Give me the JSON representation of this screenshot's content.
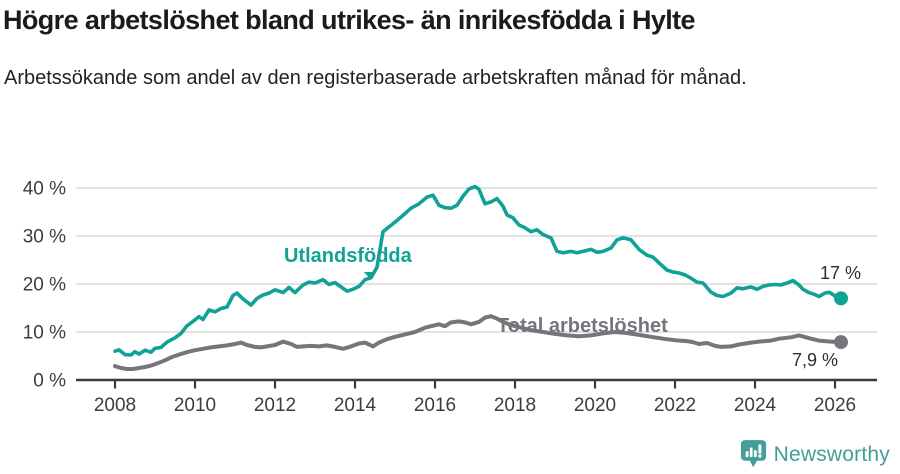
{
  "header": {
    "title": "Högre arbetslöshet bland utrikes- än inrikesfödda i Hylte",
    "subtitle": "Arbetssökande som andel av den registerbaserade arbetskraften månad för månad."
  },
  "chart_data": {
    "type": "line",
    "title": "Högre arbetslöshet bland utrikes- än inrikesfödda i Hylte",
    "subtitle": "Arbetssökande som andel av den registerbaserade arbetskraften månad för månad.",
    "xlabel": "",
    "ylabel": "",
    "x_axis": {
      "ticks": [
        2008,
        2010,
        2012,
        2014,
        2016,
        2018,
        2020,
        2022,
        2024,
        2026
      ],
      "range": [
        2007.3,
        2027.1
      ]
    },
    "y_axis": {
      "tick_values": [
        0,
        10,
        20,
        30,
        40
      ],
      "tick_labels": [
        "0 %",
        "10 %",
        "20 %",
        "30 %",
        "40 %"
      ],
      "range": [
        0,
        42
      ],
      "grid": true
    },
    "legend_position": "inline-labels",
    "series": [
      {
        "name": "Utlandsfödda",
        "color": "#10a294",
        "end_label": "17 %",
        "end_value": 17.0,
        "points": [
          [
            2008.0,
            6.0
          ],
          [
            2008.1,
            6.3
          ],
          [
            2008.25,
            5.3
          ],
          [
            2008.4,
            5.2
          ],
          [
            2008.5,
            5.9
          ],
          [
            2008.6,
            5.4
          ],
          [
            2008.75,
            6.2
          ],
          [
            2008.9,
            5.8
          ],
          [
            2009.0,
            6.6
          ],
          [
            2009.15,
            6.8
          ],
          [
            2009.3,
            7.9
          ],
          [
            2009.5,
            8.8
          ],
          [
            2009.65,
            9.7
          ],
          [
            2009.8,
            11.3
          ],
          [
            2009.95,
            12.2
          ],
          [
            2010.1,
            13.2
          ],
          [
            2010.2,
            12.6
          ],
          [
            2010.35,
            14.6
          ],
          [
            2010.5,
            14.2
          ],
          [
            2010.65,
            14.9
          ],
          [
            2010.8,
            15.2
          ],
          [
            2010.95,
            17.6
          ],
          [
            2011.05,
            18.1
          ],
          [
            2011.2,
            16.9
          ],
          [
            2011.4,
            15.6
          ],
          [
            2011.55,
            17.0
          ],
          [
            2011.7,
            17.7
          ],
          [
            2011.85,
            18.1
          ],
          [
            2012.0,
            18.8
          ],
          [
            2012.2,
            18.2
          ],
          [
            2012.35,
            19.3
          ],
          [
            2012.5,
            18.2
          ],
          [
            2012.7,
            19.8
          ],
          [
            2012.85,
            20.4
          ],
          [
            2013.0,
            20.2
          ],
          [
            2013.2,
            20.9
          ],
          [
            2013.35,
            19.9
          ],
          [
            2013.5,
            20.3
          ],
          [
            2013.65,
            19.4
          ],
          [
            2013.8,
            18.5
          ],
          [
            2013.95,
            18.9
          ],
          [
            2014.1,
            19.5
          ],
          [
            2014.25,
            20.9
          ],
          [
            2014.4,
            21.3
          ],
          [
            2014.55,
            23.5
          ],
          [
            2014.7,
            30.9
          ],
          [
            2014.85,
            31.9
          ],
          [
            2015.0,
            32.9
          ],
          [
            2015.2,
            34.3
          ],
          [
            2015.4,
            35.8
          ],
          [
            2015.6,
            36.7
          ],
          [
            2015.8,
            38.1
          ],
          [
            2015.95,
            38.5
          ],
          [
            2016.1,
            36.4
          ],
          [
            2016.25,
            35.9
          ],
          [
            2016.4,
            35.8
          ],
          [
            2016.55,
            36.4
          ],
          [
            2016.7,
            38.3
          ],
          [
            2016.85,
            39.8
          ],
          [
            2017.0,
            40.3
          ],
          [
            2017.1,
            39.7
          ],
          [
            2017.25,
            36.7
          ],
          [
            2017.4,
            37.1
          ],
          [
            2017.55,
            37.8
          ],
          [
            2017.7,
            36.2
          ],
          [
            2017.8,
            34.4
          ],
          [
            2017.95,
            33.8
          ],
          [
            2018.1,
            32.3
          ],
          [
            2018.25,
            31.7
          ],
          [
            2018.4,
            30.9
          ],
          [
            2018.55,
            31.3
          ],
          [
            2018.7,
            30.3
          ],
          [
            2018.9,
            29.6
          ],
          [
            2019.05,
            26.8
          ],
          [
            2019.2,
            26.5
          ],
          [
            2019.4,
            26.8
          ],
          [
            2019.55,
            26.5
          ],
          [
            2019.7,
            26.8
          ],
          [
            2019.9,
            27.2
          ],
          [
            2020.05,
            26.6
          ],
          [
            2020.2,
            26.8
          ],
          [
            2020.4,
            27.5
          ],
          [
            2020.55,
            29.2
          ],
          [
            2020.7,
            29.6
          ],
          [
            2020.9,
            29.2
          ],
          [
            2021.1,
            27.2
          ],
          [
            2021.3,
            26.0
          ],
          [
            2021.45,
            25.6
          ],
          [
            2021.6,
            24.4
          ],
          [
            2021.8,
            22.9
          ],
          [
            2021.95,
            22.5
          ],
          [
            2022.1,
            22.3
          ],
          [
            2022.25,
            21.9
          ],
          [
            2022.4,
            21.2
          ],
          [
            2022.55,
            20.4
          ],
          [
            2022.7,
            20.2
          ],
          [
            2022.9,
            18.3
          ],
          [
            2023.05,
            17.6
          ],
          [
            2023.2,
            17.4
          ],
          [
            2023.4,
            18.1
          ],
          [
            2023.55,
            19.2
          ],
          [
            2023.7,
            19.0
          ],
          [
            2023.9,
            19.4
          ],
          [
            2024.05,
            18.9
          ],
          [
            2024.2,
            19.5
          ],
          [
            2024.35,
            19.8
          ],
          [
            2024.5,
            19.9
          ],
          [
            2024.65,
            19.8
          ],
          [
            2024.8,
            20.2
          ],
          [
            2024.95,
            20.7
          ],
          [
            2025.1,
            19.8
          ],
          [
            2025.2,
            18.9
          ],
          [
            2025.35,
            18.2
          ],
          [
            2025.5,
            17.8
          ],
          [
            2025.6,
            17.4
          ],
          [
            2025.75,
            18.1
          ],
          [
            2025.85,
            18.3
          ],
          [
            2025.95,
            17.8
          ],
          [
            2026.05,
            17.2
          ],
          [
            2026.15,
            17.0
          ]
        ]
      },
      {
        "name": "Total arbetslöshet",
        "color": "#76757b",
        "end_label": "7,9 %",
        "end_value": 7.9,
        "points": [
          [
            2008.0,
            2.9
          ],
          [
            2008.15,
            2.5
          ],
          [
            2008.3,
            2.3
          ],
          [
            2008.45,
            2.3
          ],
          [
            2008.6,
            2.5
          ],
          [
            2008.75,
            2.7
          ],
          [
            2008.9,
            3.0
          ],
          [
            2009.1,
            3.6
          ],
          [
            2009.25,
            4.1
          ],
          [
            2009.4,
            4.7
          ],
          [
            2009.6,
            5.3
          ],
          [
            2009.8,
            5.8
          ],
          [
            2010.0,
            6.2
          ],
          [
            2010.2,
            6.5
          ],
          [
            2010.4,
            6.8
          ],
          [
            2010.6,
            7.0
          ],
          [
            2010.8,
            7.2
          ],
          [
            2011.0,
            7.5
          ],
          [
            2011.15,
            7.8
          ],
          [
            2011.3,
            7.3
          ],
          [
            2011.5,
            6.9
          ],
          [
            2011.65,
            6.8
          ],
          [
            2011.8,
            7.0
          ],
          [
            2012.0,
            7.3
          ],
          [
            2012.2,
            8.0
          ],
          [
            2012.4,
            7.5
          ],
          [
            2012.55,
            6.9
          ],
          [
            2012.7,
            7.0
          ],
          [
            2012.9,
            7.1
          ],
          [
            2013.1,
            7.0
          ],
          [
            2013.3,
            7.2
          ],
          [
            2013.5,
            6.9
          ],
          [
            2013.7,
            6.5
          ],
          [
            2013.9,
            7.0
          ],
          [
            2014.1,
            7.6
          ],
          [
            2014.25,
            7.8
          ],
          [
            2014.45,
            7.0
          ],
          [
            2014.6,
            7.8
          ],
          [
            2014.8,
            8.5
          ],
          [
            2015.0,
            9.0
          ],
          [
            2015.25,
            9.5
          ],
          [
            2015.5,
            10.0
          ],
          [
            2015.75,
            10.9
          ],
          [
            2015.9,
            11.2
          ],
          [
            2016.1,
            11.6
          ],
          [
            2016.25,
            11.2
          ],
          [
            2016.4,
            12.0
          ],
          [
            2016.6,
            12.2
          ],
          [
            2016.75,
            12.0
          ],
          [
            2016.9,
            11.6
          ],
          [
            2017.1,
            12.1
          ],
          [
            2017.25,
            13.0
          ],
          [
            2017.4,
            13.3
          ],
          [
            2017.55,
            12.8
          ],
          [
            2017.7,
            12.1
          ],
          [
            2017.85,
            11.6
          ],
          [
            2018.1,
            11.0
          ],
          [
            2018.4,
            10.4
          ],
          [
            2018.7,
            10.0
          ],
          [
            2019.0,
            9.6
          ],
          [
            2019.3,
            9.3
          ],
          [
            2019.6,
            9.1
          ],
          [
            2019.9,
            9.3
          ],
          [
            2020.2,
            9.7
          ],
          [
            2020.5,
            10.0
          ],
          [
            2020.8,
            9.8
          ],
          [
            2021.1,
            9.4
          ],
          [
            2021.4,
            9.0
          ],
          [
            2021.7,
            8.6
          ],
          [
            2022.0,
            8.3
          ],
          [
            2022.3,
            8.1
          ],
          [
            2022.45,
            7.9
          ],
          [
            2022.6,
            7.5
          ],
          [
            2022.8,
            7.7
          ],
          [
            2023.0,
            7.1
          ],
          [
            2023.15,
            6.9
          ],
          [
            2023.4,
            7.0
          ],
          [
            2023.6,
            7.4
          ],
          [
            2023.9,
            7.8
          ],
          [
            2024.1,
            8.0
          ],
          [
            2024.4,
            8.2
          ],
          [
            2024.6,
            8.6
          ],
          [
            2024.9,
            8.9
          ],
          [
            2025.1,
            9.3
          ],
          [
            2025.4,
            8.6
          ],
          [
            2025.6,
            8.2
          ],
          [
            2025.9,
            8.0
          ],
          [
            2026.15,
            7.9
          ]
        ]
      }
    ]
  },
  "footer": {
    "brand": "Newsworthy"
  },
  "colors": {
    "teal_line": "#10a294",
    "gray_line": "#76757b",
    "grid": "#d9d9d9",
    "axis": "#3a3a3a",
    "title_text": "#1b1b1b",
    "brand_teal": "#449e97"
  }
}
